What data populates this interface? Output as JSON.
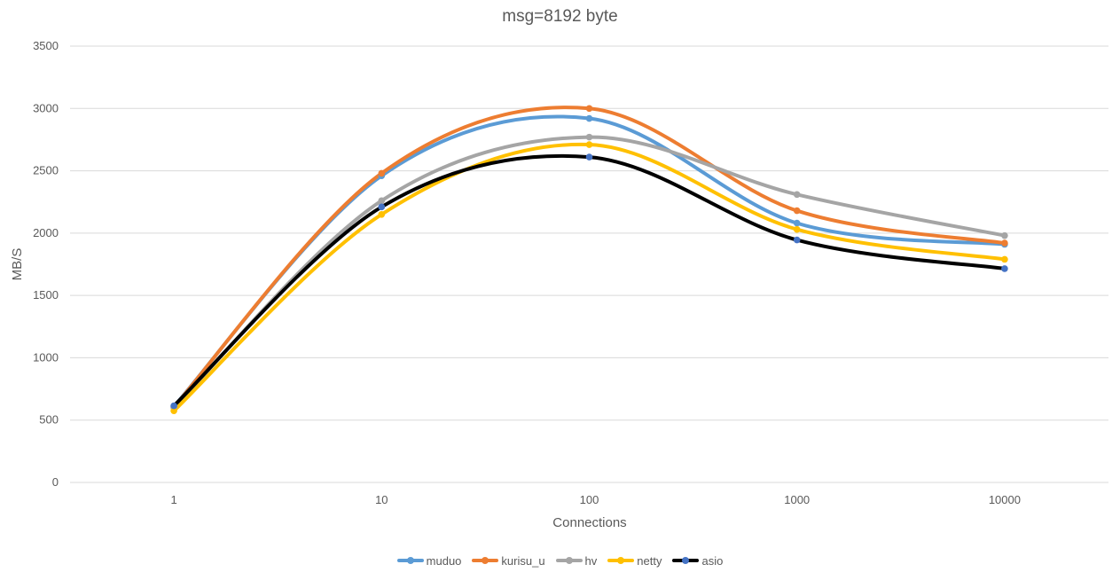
{
  "chart_data": {
    "type": "line",
    "title": "msg=8192 byte",
    "xlabel": "Connections",
    "ylabel": "MB/S",
    "categories": [
      "1",
      "10",
      "100",
      "1000",
      "10000"
    ],
    "ylim": [
      0,
      3500
    ],
    "yticks": [
      0,
      500,
      1000,
      1500,
      2000,
      2500,
      3000,
      3500
    ],
    "grid": true,
    "legend_position": "bottom",
    "smooth": true,
    "series": [
      {
        "name": "muduo",
        "color": "#5b9bd5",
        "marker_color": "#5b9bd5",
        "values": [
          610,
          2460,
          2920,
          2080,
          1910
        ]
      },
      {
        "name": "kurisu_u",
        "color": "#ed7d31",
        "marker_color": "#ed7d31",
        "values": [
          605,
          2480,
          3000,
          2180,
          1920
        ]
      },
      {
        "name": "hv",
        "color": "#a5a5a5",
        "marker_color": "#a5a5a5",
        "values": [
          600,
          2260,
          2770,
          2310,
          1980
        ]
      },
      {
        "name": "netty",
        "color": "#ffc000",
        "marker_color": "#ffc000",
        "values": [
          575,
          2150,
          2710,
          2030,
          1790
        ]
      },
      {
        "name": "asio",
        "color": "#000000",
        "marker_color": "#4472c4",
        "values": [
          615,
          2210,
          2610,
          1945,
          1715
        ]
      }
    ]
  }
}
